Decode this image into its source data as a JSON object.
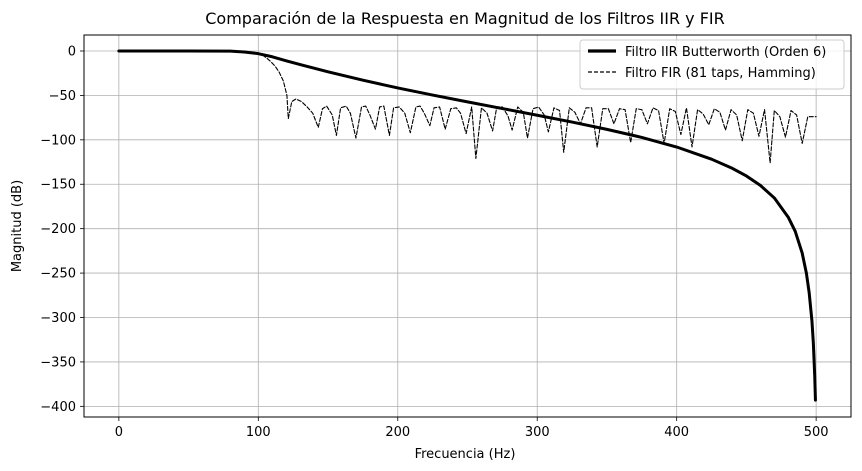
{
  "chart_data": {
    "type": "line",
    "title": "Comparación de la Respuesta en Magnitud de los Filtros IIR y FIR",
    "xlabel": "Frecuencia (Hz)",
    "ylabel": "Magnitud (dB)",
    "xlim": [
      -25,
      525
    ],
    "ylim": [
      -412,
      18
    ],
    "xticks": [
      0,
      100,
      200,
      300,
      400,
      500
    ],
    "yticks": [
      0,
      -50,
      -100,
      -150,
      -200,
      -250,
      -300,
      -350,
      -400
    ],
    "xtick_labels": [
      "0",
      "100",
      "200",
      "300",
      "400",
      "500"
    ],
    "ytick_labels": [
      "0",
      "−50",
      "−100",
      "−150",
      "−200",
      "−250",
      "−300",
      "−350",
      "−400"
    ],
    "grid": true,
    "legend_position": "top-right",
    "series": [
      {
        "name": "Filtro IIR Butterworth (Orden 6)",
        "style": "solid",
        "color": "#000000",
        "x": [
          0,
          50,
          80,
          90,
          100,
          110,
          120,
          130,
          150,
          175,
          200,
          225,
          250,
          275,
          300,
          325,
          350,
          375,
          400,
          425,
          440,
          450,
          460,
          470,
          480,
          485,
          490,
          493,
          495,
          497,
          498,
          499,
          499.5
        ],
        "y": [
          0,
          0,
          -0.2,
          -1.1,
          -3.0,
          -6.5,
          -11,
          -15.3,
          -23.4,
          -32.9,
          -41.6,
          -49.6,
          -57.3,
          -64.8,
          -72.3,
          -80.0,
          -88.2,
          -97.3,
          -108.1,
          -121.8,
          -132.2,
          -140.7,
          -151.3,
          -165.4,
          -187.1,
          -203.0,
          -227.5,
          -250.0,
          -272.0,
          -304.0,
          -329.0,
          -366.0,
          -393.0
        ]
      },
      {
        "name": "Filtro FIR (81 taps, Hamming)",
        "style": "dashed",
        "color": "#000000",
        "x": [
          0,
          50,
          80,
          90,
          95,
          100,
          103,
          106,
          109,
          112,
          115,
          118,
          120.5,
          121.5,
          124,
          127,
          131,
          135,
          139,
          143,
          146,
          149,
          153,
          156,
          159,
          163,
          166,
          170,
          174,
          177,
          180,
          184,
          187,
          190,
          194,
          197,
          201,
          205,
          209,
          213,
          216,
          219,
          223,
          226,
          230,
          234,
          238,
          242,
          245,
          249,
          253,
          256,
          260,
          264,
          268,
          271,
          275,
          279,
          282,
          286,
          290,
          293,
          297,
          301,
          305,
          308,
          312,
          316,
          319,
          323,
          327,
          331,
          335,
          339,
          343,
          347,
          351,
          355,
          359,
          363,
          367,
          371,
          375,
          379,
          383,
          387,
          391,
          395,
          399,
          403,
          407,
          411,
          415,
          419,
          423,
          427,
          431,
          435,
          439,
          443,
          447,
          451,
          455,
          459,
          463,
          467,
          470,
          474,
          478,
          482,
          486,
          490,
          494,
          497,
          500
        ],
        "y": [
          0,
          0,
          0,
          -0.3,
          -1.0,
          -2.3,
          -4.5,
          -8,
          -12,
          -17,
          -24,
          -34,
          -50,
          -76,
          -57,
          -54,
          -57,
          -63,
          -70,
          -86,
          -65,
          -62,
          -72,
          -95,
          -64,
          -62,
          -70,
          -98,
          -63,
          -62,
          -72,
          -88,
          -63,
          -62,
          -95,
          -64,
          -63,
          -70,
          -92,
          -63,
          -62,
          -70,
          -84,
          -64,
          -63,
          -88,
          -65,
          -64,
          -70,
          -93,
          -63,
          -121,
          -64,
          -70,
          -90,
          -63,
          -63,
          -73,
          -89,
          -63,
          -69,
          -98,
          -65,
          -63,
          -72,
          -91,
          -64,
          -67,
          -114,
          -64,
          -69,
          -82,
          -64,
          -64,
          -108,
          -65,
          -65,
          -82,
          -65,
          -66,
          -103,
          -65,
          -66,
          -82,
          -64,
          -67,
          -104,
          -65,
          -68,
          -94,
          -64,
          -108,
          -66,
          -71,
          -83,
          -65,
          -69,
          -89,
          -66,
          -72,
          -101,
          -66,
          -70,
          -96,
          -66,
          -126,
          -67,
          -74,
          -97,
          -67,
          -72,
          -104,
          -74,
          -74,
          -74
        ]
      }
    ]
  }
}
